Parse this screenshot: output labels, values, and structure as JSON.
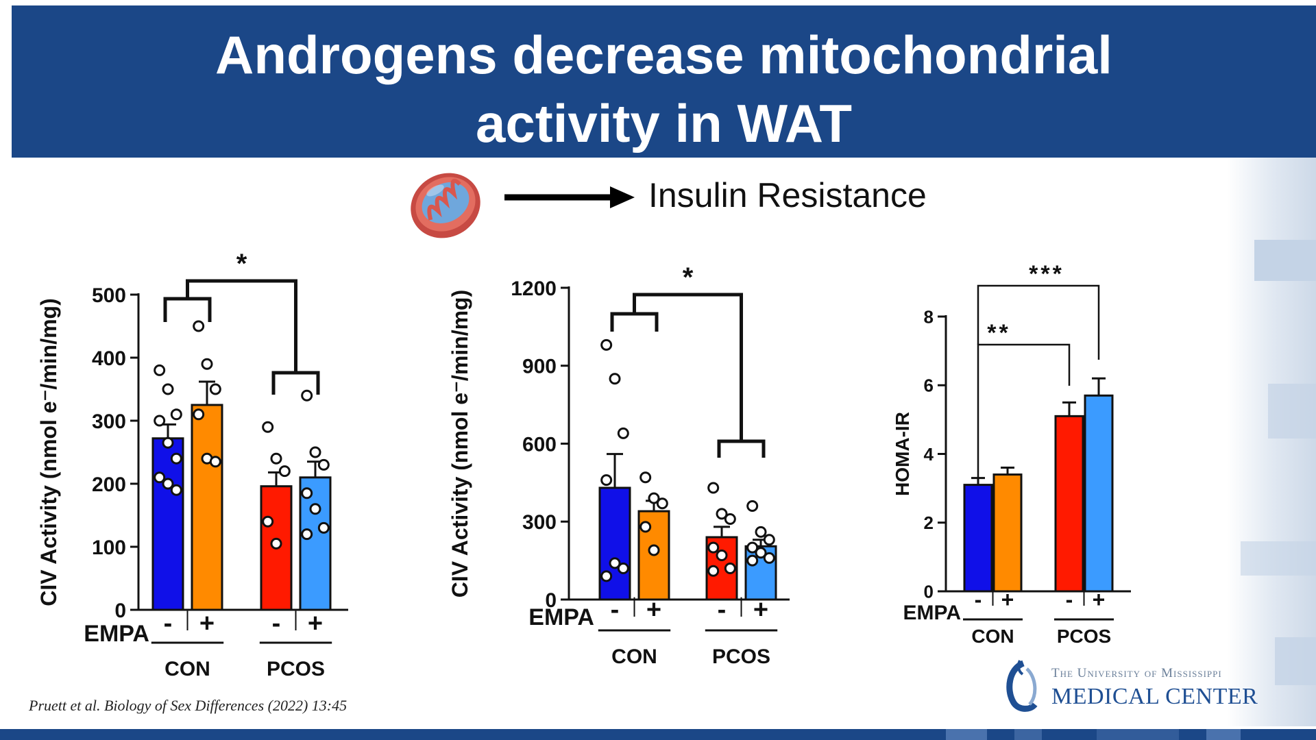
{
  "slide": {
    "title": "Androgens decrease mitochondrial\nactivity in WAT",
    "schematic_label": "Insulin Resistance",
    "citation": "Pruett et al. Biology of Sex Differences (2022) 13:45",
    "logo_line1": "The University of Mississippi",
    "logo_line2": "MEDICAL CENTER",
    "logo_icon": "ummc-logo-icon",
    "mitochondrion_icon": "mitochondrion-icon",
    "colors": {
      "banner": "#1b4787",
      "con_minus": "#1010e8",
      "con_plus": "#ff8a00",
      "pcos_minus": "#ff1a00",
      "pcos_plus": "#3b9bff"
    }
  },
  "chart_data": [
    {
      "type": "bar",
      "ylabel": "CIV Activity (nmol e⁻/min/mg)",
      "ylim": [
        0,
        500
      ],
      "yticks": [
        "0",
        "100",
        "200",
        "300",
        "400",
        "500"
      ],
      "row_label": "EMPA",
      "treatment_labels": [
        "-",
        "+",
        "-",
        "+"
      ],
      "groups": [
        "CON",
        "PCOS"
      ],
      "bars": [
        {
          "group": "CON",
          "empa": "-",
          "value": 272,
          "sem": 22,
          "color": "#1010e8",
          "points": [
            380,
            350,
            310,
            300,
            265,
            240,
            210,
            200,
            190
          ]
        },
        {
          "group": "CON",
          "empa": "+",
          "value": 325,
          "sem": 37,
          "color": "#ff8a00",
          "points": [
            450,
            390,
            350,
            310,
            240,
            235
          ]
        },
        {
          "group": "PCOS",
          "empa": "-",
          "value": 196,
          "sem": 22,
          "color": "#ff1a00",
          "points": [
            290,
            240,
            220,
            140,
            105
          ]
        },
        {
          "group": "PCOS",
          "empa": "+",
          "value": 210,
          "sem": 25,
          "color": "#3b9bff",
          "points": [
            340,
            250,
            230,
            185,
            160,
            130,
            120
          ]
        }
      ],
      "significance": [
        {
          "label": "*",
          "between": "CON vs PCOS"
        }
      ]
    },
    {
      "type": "bar",
      "ylabel": "CIV Activity (nmol e⁻/min/mg)",
      "ylim": [
        0,
        1200
      ],
      "yticks": [
        "0",
        "300",
        "600",
        "900",
        "1200"
      ],
      "row_label": "EMPA",
      "treatment_labels": [
        "-",
        "+",
        "-",
        "+"
      ],
      "groups": [
        "CON",
        "PCOS"
      ],
      "bars": [
        {
          "group": "CON",
          "empa": "-",
          "value": 430,
          "sem": 130,
          "color": "#1010e8",
          "points": [
            980,
            850,
            640,
            460,
            140,
            120,
            90
          ]
        },
        {
          "group": "CON",
          "empa": "+",
          "value": 340,
          "sem": 40,
          "color": "#ff8a00",
          "points": [
            470,
            390,
            370,
            280,
            190
          ]
        },
        {
          "group": "PCOS",
          "empa": "-",
          "value": 240,
          "sem": 40,
          "color": "#ff1a00",
          "points": [
            430,
            330,
            310,
            200,
            170,
            120,
            110
          ]
        },
        {
          "group": "PCOS",
          "empa": "+",
          "value": 205,
          "sem": 25,
          "color": "#3b9bff",
          "points": [
            360,
            260,
            230,
            200,
            180,
            160,
            150
          ]
        }
      ],
      "significance": [
        {
          "label": "*",
          "between": "CON vs PCOS"
        }
      ]
    },
    {
      "type": "bar",
      "ylabel": "HOMA-IR",
      "ylim": [
        0,
        8
      ],
      "yticks": [
        "0",
        "2",
        "4",
        "6",
        "8"
      ],
      "row_label": "EMPA",
      "treatment_labels": [
        "-",
        "+",
        "-",
        "+"
      ],
      "groups": [
        "CON",
        "PCOS"
      ],
      "bars": [
        {
          "group": "CON",
          "empa": "-",
          "value": 3.1,
          "sem": 0.2,
          "color": "#1010e8",
          "points": []
        },
        {
          "group": "CON",
          "empa": "+",
          "value": 3.4,
          "sem": 0.2,
          "color": "#ff8a00",
          "points": []
        },
        {
          "group": "PCOS",
          "empa": "-",
          "value": 5.1,
          "sem": 0.4,
          "color": "#ff1a00",
          "points": []
        },
        {
          "group": "PCOS",
          "empa": "+",
          "value": 5.7,
          "sem": 0.5,
          "color": "#3b9bff",
          "points": []
        }
      ],
      "significance": [
        {
          "label": "**",
          "between": "CON- vs PCOS-"
        },
        {
          "label": "***",
          "between": "CON- vs PCOS+"
        }
      ]
    }
  ]
}
